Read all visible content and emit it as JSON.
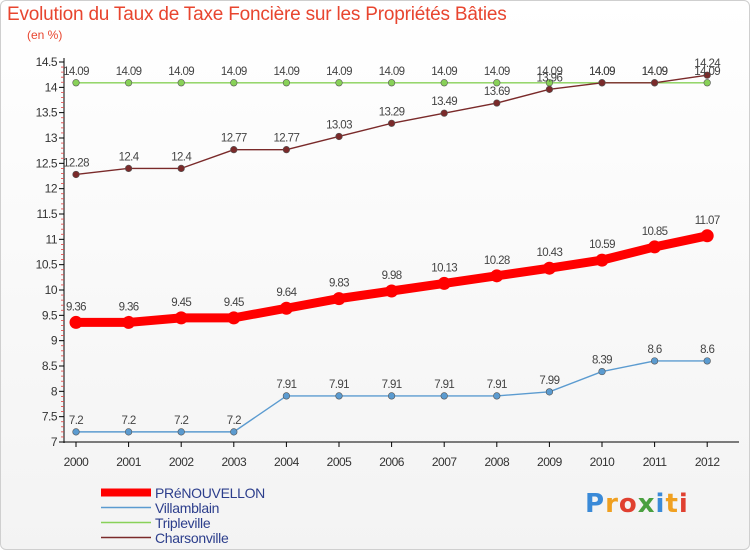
{
  "header": {
    "title": "Evolution du Taux de Taxe Foncière sur les Propriétés Bâties",
    "unit": "(en %)"
  },
  "logo": {
    "text": "Proxiti",
    "letters": [
      "P",
      "r",
      "o",
      "x",
      "i",
      "t",
      "i"
    ]
  },
  "chart_data": {
    "type": "line",
    "title": "Evolution du Taux de Taxe Foncière sur les Propriétés Bâties",
    "ylabel": "(en %)",
    "xlabel": "",
    "ylim": [
      7,
      14.5
    ],
    "yticks": [
      "7",
      "7.5",
      "8",
      "8.5",
      "9",
      "9.5",
      "10",
      "10.5",
      "11",
      "11.5",
      "12",
      "12.5",
      "13",
      "13.5",
      "14",
      "14.5"
    ],
    "grid": false,
    "legend_position": "bottom-left",
    "categories": [
      "2000",
      "2001",
      "2002",
      "2003",
      "2004",
      "2005",
      "2006",
      "2007",
      "2008",
      "2009",
      "2010",
      "2011",
      "2012"
    ],
    "series": [
      {
        "name": "PRéNOUVELLON",
        "color": "#ff0000",
        "thick": true,
        "values": [
          9.36,
          9.36,
          9.45,
          9.45,
          9.64,
          9.83,
          9.98,
          10.13,
          10.28,
          10.43,
          10.59,
          10.85,
          11.07
        ],
        "labels": [
          "9.36",
          "9.36",
          "9.45",
          "9.45",
          "9.64",
          "9.83",
          "9.98",
          "10.13",
          "10.28",
          "10.43",
          "10.59",
          "10.85",
          "11.07"
        ]
      },
      {
        "name": "Villamblain",
        "color": "#5b9bd0",
        "thick": false,
        "values": [
          7.2,
          7.2,
          7.2,
          7.2,
          7.91,
          7.91,
          7.91,
          7.91,
          7.91,
          7.99,
          8.39,
          8.6,
          8.6
        ],
        "labels": [
          "7.2",
          "7.2",
          "7.2",
          "7.2",
          "7.91",
          "7.91",
          "7.91",
          "7.91",
          "7.91",
          "7.99",
          "8.39",
          "8.6",
          "8.6"
        ]
      },
      {
        "name": "Tripleville",
        "color": "#88d158",
        "thick": false,
        "values": [
          14.09,
          14.09,
          14.09,
          14.09,
          14.09,
          14.09,
          14.09,
          14.09,
          14.09,
          14.09,
          14.09,
          14.09,
          14.09
        ],
        "labels": [
          "14.09",
          "14.09",
          "14.09",
          "14.09",
          "14.09",
          "14.09",
          "14.09",
          "14.09",
          "14.09",
          "14.09",
          "14.09",
          "14.09",
          "14.09"
        ]
      },
      {
        "name": "Charsonville",
        "color": "#7a2a2a",
        "thick": false,
        "values": [
          12.28,
          12.4,
          12.4,
          12.77,
          12.77,
          13.03,
          13.29,
          13.49,
          13.69,
          13.96,
          14.09,
          14.09,
          14.24
        ],
        "labels": [
          "12.28",
          "12.4",
          "12.4",
          "12.77",
          "12.77",
          "13.03",
          "13.29",
          "13.49",
          "13.69",
          "13.96",
          "14.09",
          "14.09",
          "14.24"
        ]
      }
    ]
  }
}
